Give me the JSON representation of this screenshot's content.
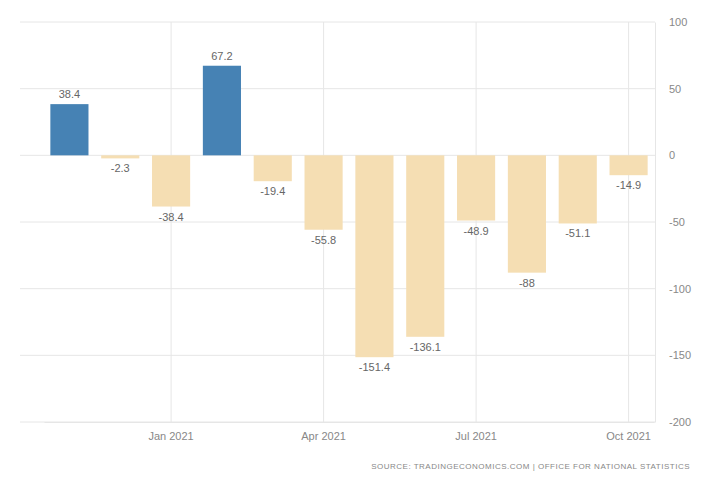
{
  "chart_data": {
    "type": "bar",
    "categories": [
      null,
      null,
      "Jan 2021",
      null,
      null,
      "Apr 2021",
      null,
      null,
      "Jul 2021",
      null,
      null,
      "Oct 2021"
    ],
    "values": [
      38.4,
      -2.3,
      -38.4,
      67.2,
      -19.4,
      -55.8,
      -151.4,
      -136.1,
      -48.9,
      -88,
      -51.1,
      -14.9
    ],
    "colors": [
      "#4682b4",
      "#f5deb3",
      "#f5deb3",
      "#4682b4",
      "#f5deb3",
      "#f5deb3",
      "#f5deb3",
      "#f5deb3",
      "#f5deb3",
      "#f5deb3",
      "#f5deb3",
      "#f5deb3"
    ],
    "ylim": [
      -200,
      100
    ],
    "yticks": [
      -200,
      -150,
      -100,
      -50,
      0,
      50,
      100
    ],
    "grid": true,
    "data_labels": true,
    "source": "SOURCE: TRADINGECONOMICS.COM | OFFICE FOR NATIONAL STATISTICS"
  }
}
